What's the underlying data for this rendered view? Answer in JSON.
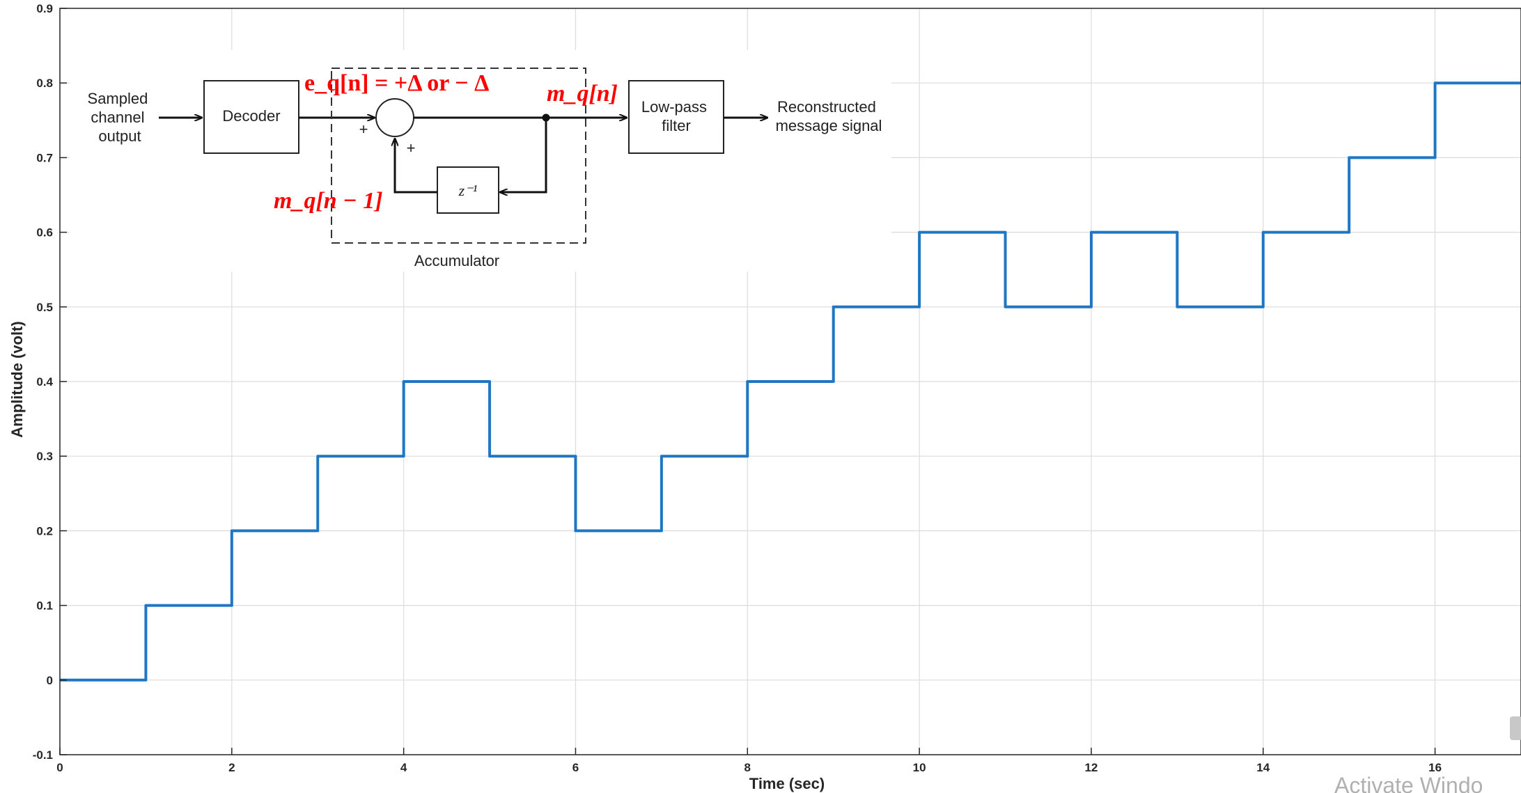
{
  "chart_data": {
    "type": "line",
    "step": true,
    "xlabel": "Time (sec)",
    "ylabel": "Amplitude (volt)",
    "xlim": [
      0,
      17
    ],
    "ylim": [
      -0.1,
      0.9
    ],
    "xticks": [
      "0",
      "2",
      "4",
      "6",
      "8",
      "10",
      "12",
      "14",
      "16"
    ],
    "yticks": [
      "-0.1",
      "0",
      "0.1",
      "0.2",
      "0.3",
      "0.4",
      "0.5",
      "0.6",
      "0.7",
      "0.8",
      "0.9"
    ],
    "grid": true,
    "line_color": "#1f77c4",
    "x": [
      0,
      1,
      2,
      3,
      4,
      5,
      6,
      7,
      8,
      9,
      10,
      11,
      12,
      13,
      14,
      15,
      16
    ],
    "y": [
      0,
      0.1,
      0.2,
      0.3,
      0.4,
      0.3,
      0.2,
      0.3,
      0.4,
      0.5,
      0.6,
      0.5,
      0.6,
      0.5,
      0.6,
      0.7,
      0.8
    ]
  },
  "diagram": {
    "input_label": [
      "Sampled",
      "channel",
      "output"
    ],
    "decoder_label": "Decoder",
    "error_label": "e_q[n] = +Δ or − Δ",
    "output_label": "m_q[n]",
    "feedback_label": "m_q[n − 1]",
    "delay_label": "z⁻¹",
    "plus_1": "+",
    "plus_2": "+",
    "filter_label": [
      "Low-pass",
      "filter"
    ],
    "output_text": [
      "Reconstructed",
      "message signal"
    ],
    "accumulator_label": "Accumulator"
  },
  "watermark": "Activate Windo"
}
